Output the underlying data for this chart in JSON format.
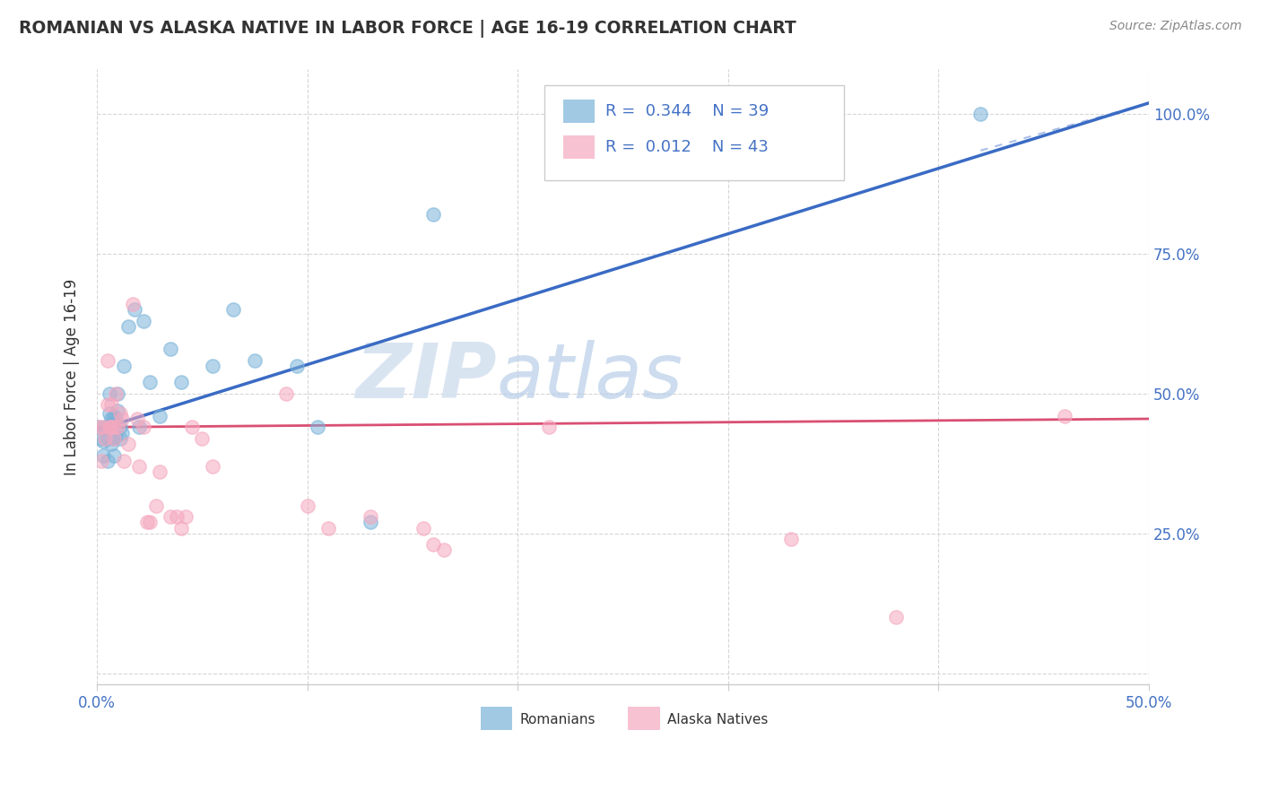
{
  "title": "ROMANIAN VS ALASKA NATIVE IN LABOR FORCE | AGE 16-19 CORRELATION CHART",
  "source": "Source: ZipAtlas.com",
  "ylabel": "In Labor Force | Age 16-19",
  "xlim": [
    0.0,
    0.5
  ],
  "ylim": [
    -0.02,
    1.08
  ],
  "romanian_color": "#7ab3d9",
  "alaska_color": "#f5a8bf",
  "trend_romanian_color": "#3a6bc4",
  "trend_alaska_color": "#d94f72",
  "legend_R_romanian": "0.344",
  "legend_N_romanian": "39",
  "legend_R_alaska": "0.012",
  "legend_N_alaska": "43",
  "watermark_zip": "ZIP",
  "watermark_atlas": "atlas",
  "romanian_x": [
    0.001,
    0.002,
    0.003,
    0.003,
    0.004,
    0.005,
    0.005,
    0.006,
    0.006,
    0.007,
    0.007,
    0.007,
    0.008,
    0.008,
    0.008,
    0.009,
    0.009,
    0.01,
    0.01,
    0.011,
    0.011,
    0.012,
    0.013,
    0.015,
    0.018,
    0.02,
    0.022,
    0.025,
    0.03,
    0.035,
    0.04,
    0.055,
    0.065,
    0.075,
    0.095,
    0.105,
    0.13,
    0.16,
    0.42
  ],
  "romanian_y": [
    0.44,
    0.42,
    0.415,
    0.39,
    0.44,
    0.38,
    0.42,
    0.5,
    0.465,
    0.455,
    0.445,
    0.41,
    0.39,
    0.42,
    0.46,
    0.425,
    0.455,
    0.47,
    0.5,
    0.42,
    0.44,
    0.43,
    0.55,
    0.62,
    0.65,
    0.44,
    0.63,
    0.52,
    0.46,
    0.58,
    0.52,
    0.55,
    0.65,
    0.56,
    0.55,
    0.44,
    0.27,
    0.82,
    1.0
  ],
  "alaska_x": [
    0.001,
    0.002,
    0.003,
    0.004,
    0.005,
    0.005,
    0.006,
    0.007,
    0.007,
    0.008,
    0.008,
    0.009,
    0.01,
    0.011,
    0.012,
    0.013,
    0.015,
    0.017,
    0.019,
    0.02,
    0.022,
    0.024,
    0.025,
    0.028,
    0.03,
    0.035,
    0.038,
    0.04,
    0.042,
    0.045,
    0.05,
    0.055,
    0.09,
    0.1,
    0.11,
    0.13,
    0.155,
    0.16,
    0.165,
    0.215,
    0.33,
    0.38,
    0.46
  ],
  "alaska_y": [
    0.44,
    0.38,
    0.44,
    0.42,
    0.48,
    0.56,
    0.44,
    0.44,
    0.48,
    0.42,
    0.44,
    0.5,
    0.44,
    0.465,
    0.455,
    0.38,
    0.41,
    0.66,
    0.455,
    0.37,
    0.44,
    0.27,
    0.27,
    0.3,
    0.36,
    0.28,
    0.28,
    0.26,
    0.28,
    0.44,
    0.42,
    0.37,
    0.5,
    0.3,
    0.26,
    0.28,
    0.26,
    0.23,
    0.22,
    0.44,
    0.24,
    0.1,
    0.46
  ]
}
